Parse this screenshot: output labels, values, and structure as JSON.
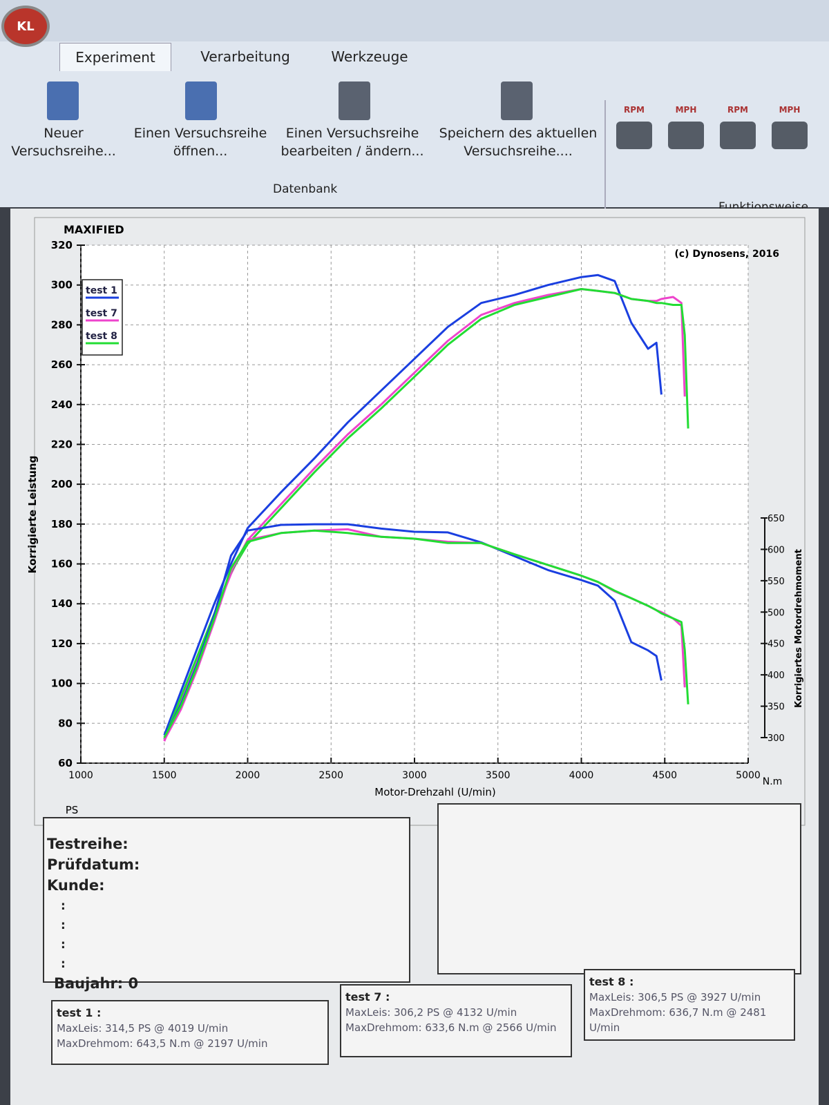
{
  "app": {
    "logo": "KL"
  },
  "ribbon": {
    "tabs": [
      "Experiment",
      "Verarbeitung",
      "Werkzeuge"
    ],
    "buttons": [
      "Neuer Versuchsreihe...",
      "Einen Versuchsreihe öffnen...",
      "Einen Versuchsreihe bearbeiten / ändern...",
      "Speichern des aktuellen Versuchsreihe...."
    ],
    "group_labels": [
      "Datenbank",
      "Funktionsweise"
    ],
    "mode_buttons": [
      "RPM",
      "MPH",
      "RPM",
      "MPH"
    ]
  },
  "chart_data": {
    "type": "line",
    "title": "MAXIFIED",
    "annotation": "(c) Dynosens, 2016",
    "x_label": "Motor-Drehzahl (U/min)",
    "y_label": "Korrigierte Leistung",
    "y2_label": "Korrigiertes Motordrehmoment",
    "y_unit": "PS",
    "y2_unit": "N.m",
    "xlim": [
      1000,
      5000
    ],
    "xticks": [
      1000,
      1500,
      2000,
      2500,
      3000,
      3500,
      4000,
      4500,
      5000
    ],
    "ylim": [
      60,
      320
    ],
    "yticks": [
      60,
      80,
      100,
      120,
      140,
      160,
      180,
      200,
      220,
      240,
      260,
      280,
      300,
      320
    ],
    "y2lim": [
      300,
      650
    ],
    "y2ticks": [
      300,
      350,
      400,
      450,
      500,
      550,
      600,
      650
    ],
    "grid": true,
    "legend": "top-left",
    "x": [
      1500,
      1600,
      1700,
      1800,
      1900,
      2000,
      2200,
      2400,
      2600,
      2800,
      3000,
      3200,
      3400,
      3600,
      3800,
      4000,
      4100,
      4200,
      4300,
      4400,
      4450,
      4480,
      4550,
      4600,
      4620,
      4640
    ],
    "series": [
      {
        "name": "test 1",
        "color": "#1a3fe0",
        "values": [
          74,
          96,
          118,
          140,
          160,
          178,
          196,
          213,
          231,
          247,
          263,
          279,
          291,
          295,
          300,
          304,
          305,
          302,
          281,
          268,
          271,
          245,
          null,
          null,
          null,
          null
        ]
      },
      {
        "name": "test 7",
        "color": "#ee44cc",
        "values": [
          71,
          92,
          113,
          134,
          155,
          172,
          190,
          208,
          225,
          240,
          256,
          272,
          285,
          291,
          295,
          298,
          297,
          296,
          293,
          292,
          292,
          293,
          294,
          291,
          244,
          null
        ]
      },
      {
        "name": "test 8",
        "color": "#22dd33",
        "values": [
          72,
          93,
          114,
          135,
          156,
          170,
          188,
          206,
          223,
          238,
          254,
          270,
          283,
          290,
          294,
          298,
          297,
          296,
          293,
          292,
          291,
          291,
          290,
          290,
          275,
          228
        ]
      },
      {
        "color": "#1a3fe0",
        "axis": "y2",
        "values": [
          300,
          353,
          419,
          496,
          590,
          630,
          639,
          640,
          640,
          633,
          628,
          627,
          611,
          589,
          567,
          551,
          542,
          518,
          452,
          439,
          430,
          391,
          null,
          null,
          null,
          null
        ]
      },
      {
        "color": "#ee44cc",
        "axis": "y2",
        "values": [
          296,
          345,
          410,
          485,
          565,
          615,
          626,
          630,
          632,
          620,
          617,
          612,
          610,
          592,
          575,
          558,
          548,
          533,
          522,
          510,
          503,
          500,
          490,
          478,
          380,
          null
        ]
      },
      {
        "color": "#22dd33",
        "axis": "y2",
        "values": [
          300,
          350,
          415,
          490,
          570,
          612,
          626,
          630,
          626,
          620,
          617,
          610,
          610,
          592,
          575,
          558,
          548,
          534,
          522,
          510,
          503,
          498,
          490,
          484,
          440,
          353
        ]
      }
    ]
  },
  "info": {
    "fields": [
      "Testreihe:",
      "Prüfdatum:",
      "Kunde:"
    ],
    "blank_fields": [
      ":",
      ":",
      ":",
      ":"
    ],
    "baujahr": "Baujahr: 0"
  },
  "results": [
    {
      "title": "test 1 :",
      "max_power": "MaxLeis: 314,5 PS @ 4019 U/min",
      "max_torque": "MaxDrehmom: 643,5 N.m @ 2197 U/min"
    },
    {
      "title": "test 7 :",
      "max_power": "MaxLeis: 306,2 PS @ 4132 U/min",
      "max_torque": "MaxDrehmom: 633,6 N.m @ 2566 U/min"
    },
    {
      "title": "test 8 :",
      "max_power": "MaxLeis: 306,5 PS @ 3927 U/min",
      "max_torque": "MaxDrehmom: 636,7 N.m @ 2481 U/min"
    }
  ]
}
